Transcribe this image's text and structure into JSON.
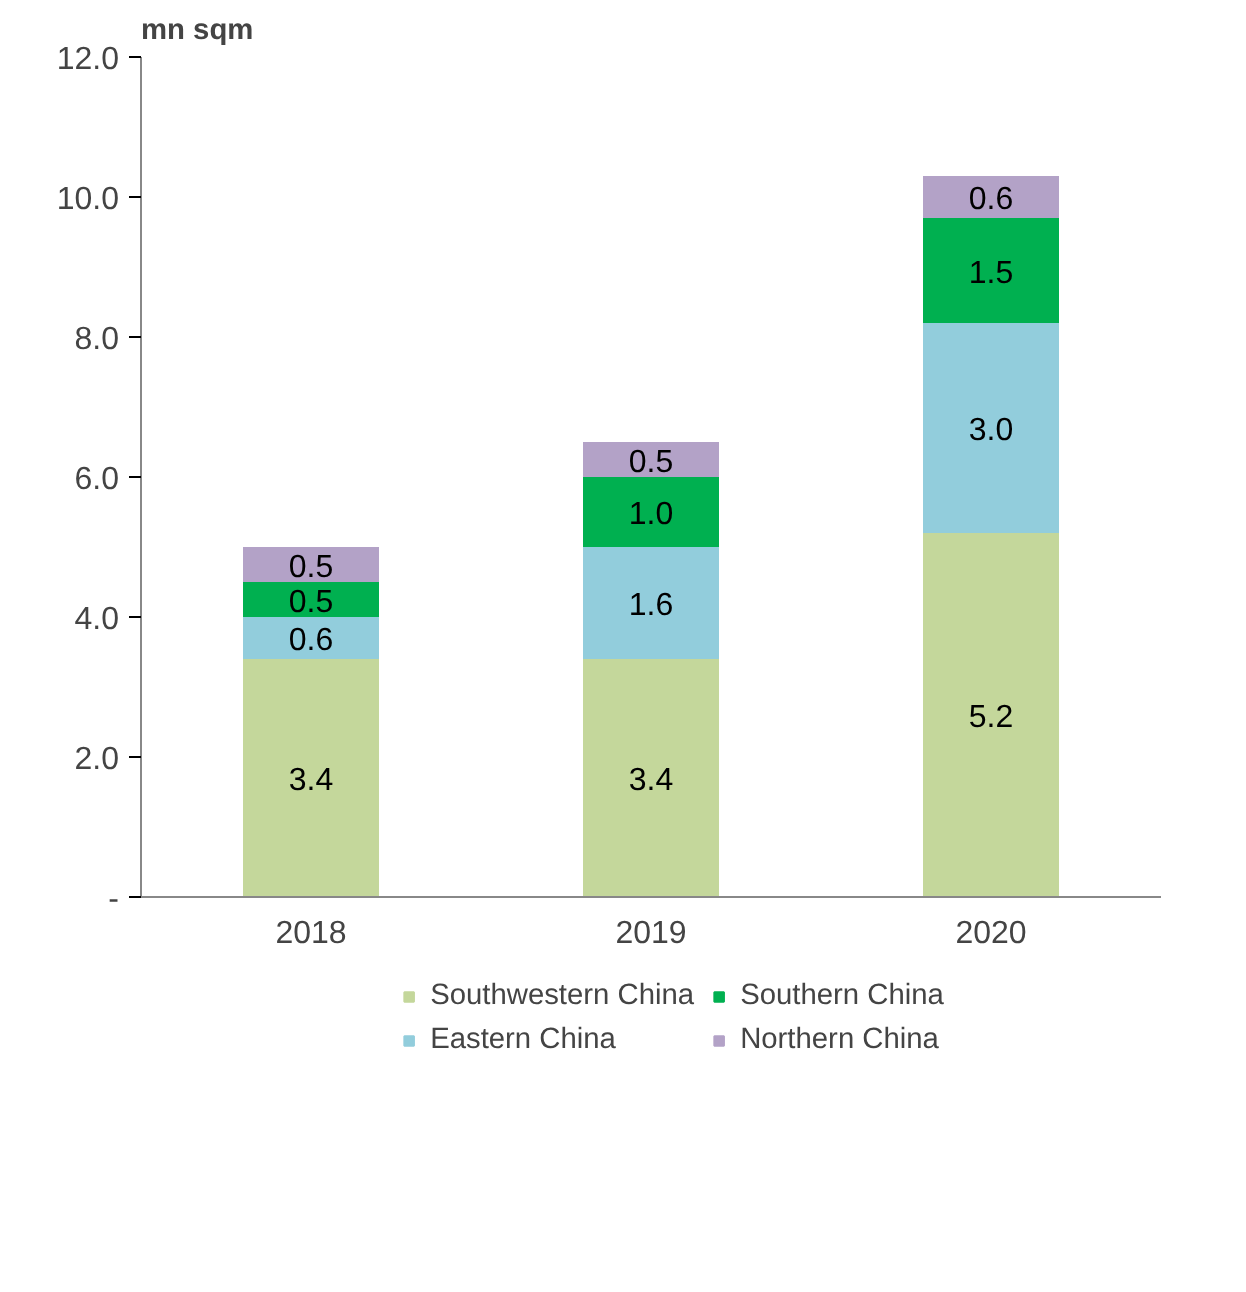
{
  "chart_data": {
    "type": "bar",
    "stacked": true,
    "ylabel": "mn sqm",
    "categories": [
      "2018",
      "2019",
      "2020"
    ],
    "series": [
      {
        "name": "Southwestern China",
        "color": "#c4d79b",
        "values": [
          3.4,
          3.4,
          5.2
        ],
        "value_labels": [
          "3.4",
          "3.4",
          "5.2"
        ]
      },
      {
        "name": "Eastern China",
        "color": "#92cddc",
        "values": [
          0.6,
          1.6,
          3.0
        ],
        "value_labels": [
          "0.6",
          "1.6",
          "3.0"
        ]
      },
      {
        "name": "Southern China",
        "color": "#00b050",
        "values": [
          0.5,
          1.0,
          1.5
        ],
        "value_labels": [
          "0.5",
          "1.0",
          "1.5"
        ]
      },
      {
        "name": "Northern China",
        "color": "#b3a2c7",
        "values": [
          0.5,
          0.5,
          0.6
        ],
        "value_labels": [
          "0.5",
          "0.5",
          "0.6"
        ]
      }
    ],
    "ylim": [
      0,
      12
    ],
    "yticks": [
      {
        "value": 0,
        "label": "-"
      },
      {
        "value": 2,
        "label": "2.0"
      },
      {
        "value": 4,
        "label": "4.0"
      },
      {
        "value": 6,
        "label": "6.0"
      },
      {
        "value": 8,
        "label": "8.0"
      },
      {
        "value": 10,
        "label": "10.0"
      },
      {
        "value": 12,
        "label": "12.0"
      }
    ],
    "grid": false,
    "legend": "bottom"
  }
}
